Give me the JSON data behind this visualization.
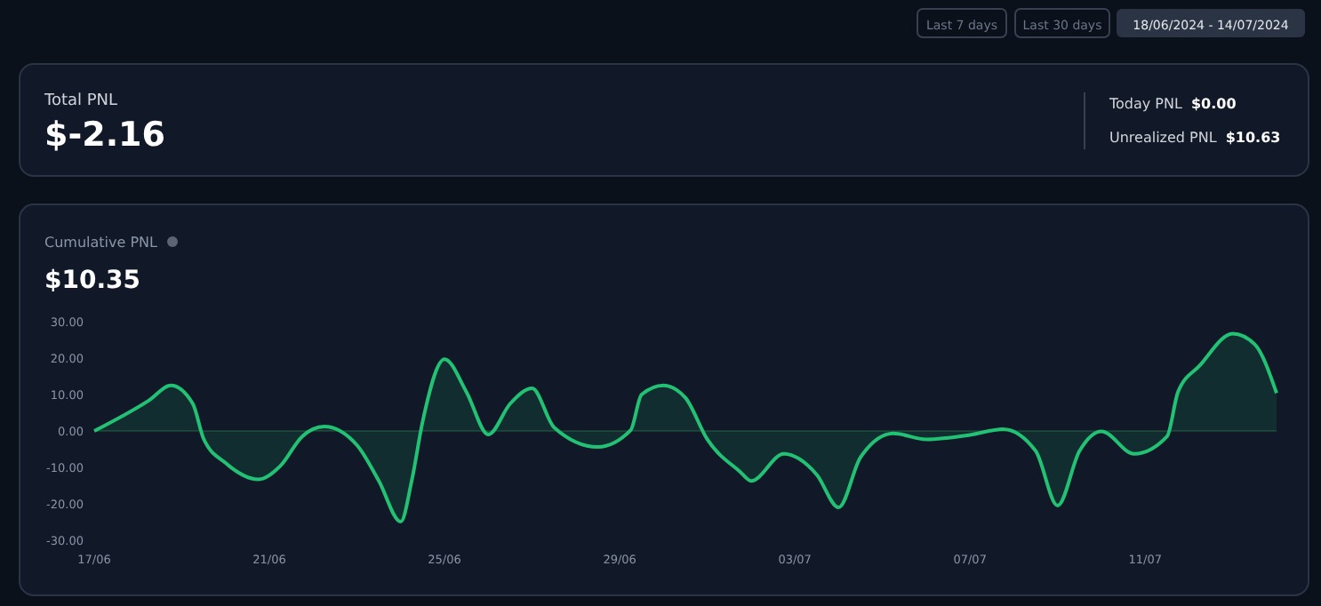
{
  "chart_data": {
    "type": "area",
    "title": "Cumulative PNL",
    "subtitle": "$10.35",
    "annotations": [
      "Total PNL",
      "$-2.16",
      "Today PNL",
      "$0.00",
      "Unrealized PNL",
      "$10.63",
      "Last 7 days",
      "Last 30 days",
      "18/06/2024 - 14/07/2024"
    ],
    "x": [
      "2024-06-17T00:00",
      "2024-06-18T06:00",
      "2024-06-18T18:00",
      "2024-06-19T06:00",
      "2024-06-19T12:00",
      "2024-06-20T00:00",
      "2024-06-20T18:00",
      "2024-06-21T06:00",
      "2024-06-21T18:00",
      "2024-06-22T06:00",
      "2024-06-23T00:00",
      "2024-06-23T12:00",
      "2024-06-24T00:00",
      "2024-06-24T06:00",
      "2024-06-24T12:00",
      "2024-06-25T00:00",
      "2024-06-25T12:00",
      "2024-06-26T00:00",
      "2024-06-26T12:00",
      "2024-06-27T00:00",
      "2024-06-27T12:00",
      "2024-06-28T12:00",
      "2024-06-29T06:00",
      "2024-06-29T12:00",
      "2024-06-30T00:00",
      "2024-06-30T12:00",
      "2024-07-01T00:00",
      "2024-07-01T18:00",
      "2024-07-02T00:00",
      "2024-07-02T18:00",
      "2024-07-03T12:00",
      "2024-07-04T00:00",
      "2024-07-04T12:00",
      "2024-07-05T06:00",
      "2024-07-06T00:00",
      "2024-07-07T00:00",
      "2024-07-07T18:00",
      "2024-07-08T12:00",
      "2024-07-09T00:00",
      "2024-07-09T12:00",
      "2024-07-10T00:00",
      "2024-07-10T18:00",
      "2024-07-11T12:00",
      "2024-07-11T18:00",
      "2024-07-12T06:00",
      "2024-07-13T00:00",
      "2024-07-13T12:00",
      "2024-07-14T00:00"
    ],
    "series": [
      {
        "color": "#22c173",
        "values": [
          0,
          8.4,
          12.5,
          7.5,
          -2.2,
          -8.8,
          -13.3,
          -9.6,
          -1.5,
          1.2,
          -3.9,
          -13.7,
          -24.9,
          -13.7,
          2.6,
          19.7,
          10.7,
          -1,
          7.5,
          11.7,
          1,
          -4.4,
          0.2,
          10,
          12.5,
          9.1,
          -2.3,
          -11.2,
          -13.7,
          -6.3,
          -12,
          -21,
          -7.2,
          -0.7,
          -2.3,
          -1.1,
          0.5,
          -5.5,
          -20.5,
          -5.5,
          -0.1,
          -6.3,
          -1.5,
          10.7,
          18,
          26.7,
          23.8,
          10.4
        ]
      }
    ],
    "xlim": [
      "2024-06-17",
      "2024-07-14"
    ],
    "xticks": [
      {
        "value": "2024-06-17",
        "label": "17/06"
      },
      {
        "value": "2024-06-21",
        "label": "21/06"
      },
      {
        "value": "2024-06-25",
        "label": "25/06"
      },
      {
        "value": "2024-06-29",
        "label": "29/06"
      },
      {
        "value": "2024-07-03",
        "label": "03/07"
      },
      {
        "value": "2024-07-07",
        "label": "07/07"
      },
      {
        "value": "2024-07-11",
        "label": "11/07"
      }
    ],
    "ylim": [
      -30,
      30
    ],
    "yticks": [
      {
        "value": -30,
        "label": "-30.00"
      },
      {
        "value": -20,
        "label": "-20.00"
      },
      {
        "value": -10,
        "label": "-10.00"
      },
      {
        "value": 0,
        "label": "0.00"
      },
      {
        "value": 10,
        "label": "10.00"
      },
      {
        "value": 20,
        "label": "20.00"
      },
      {
        "value": 30,
        "label": "30.00"
      }
    ]
  }
}
